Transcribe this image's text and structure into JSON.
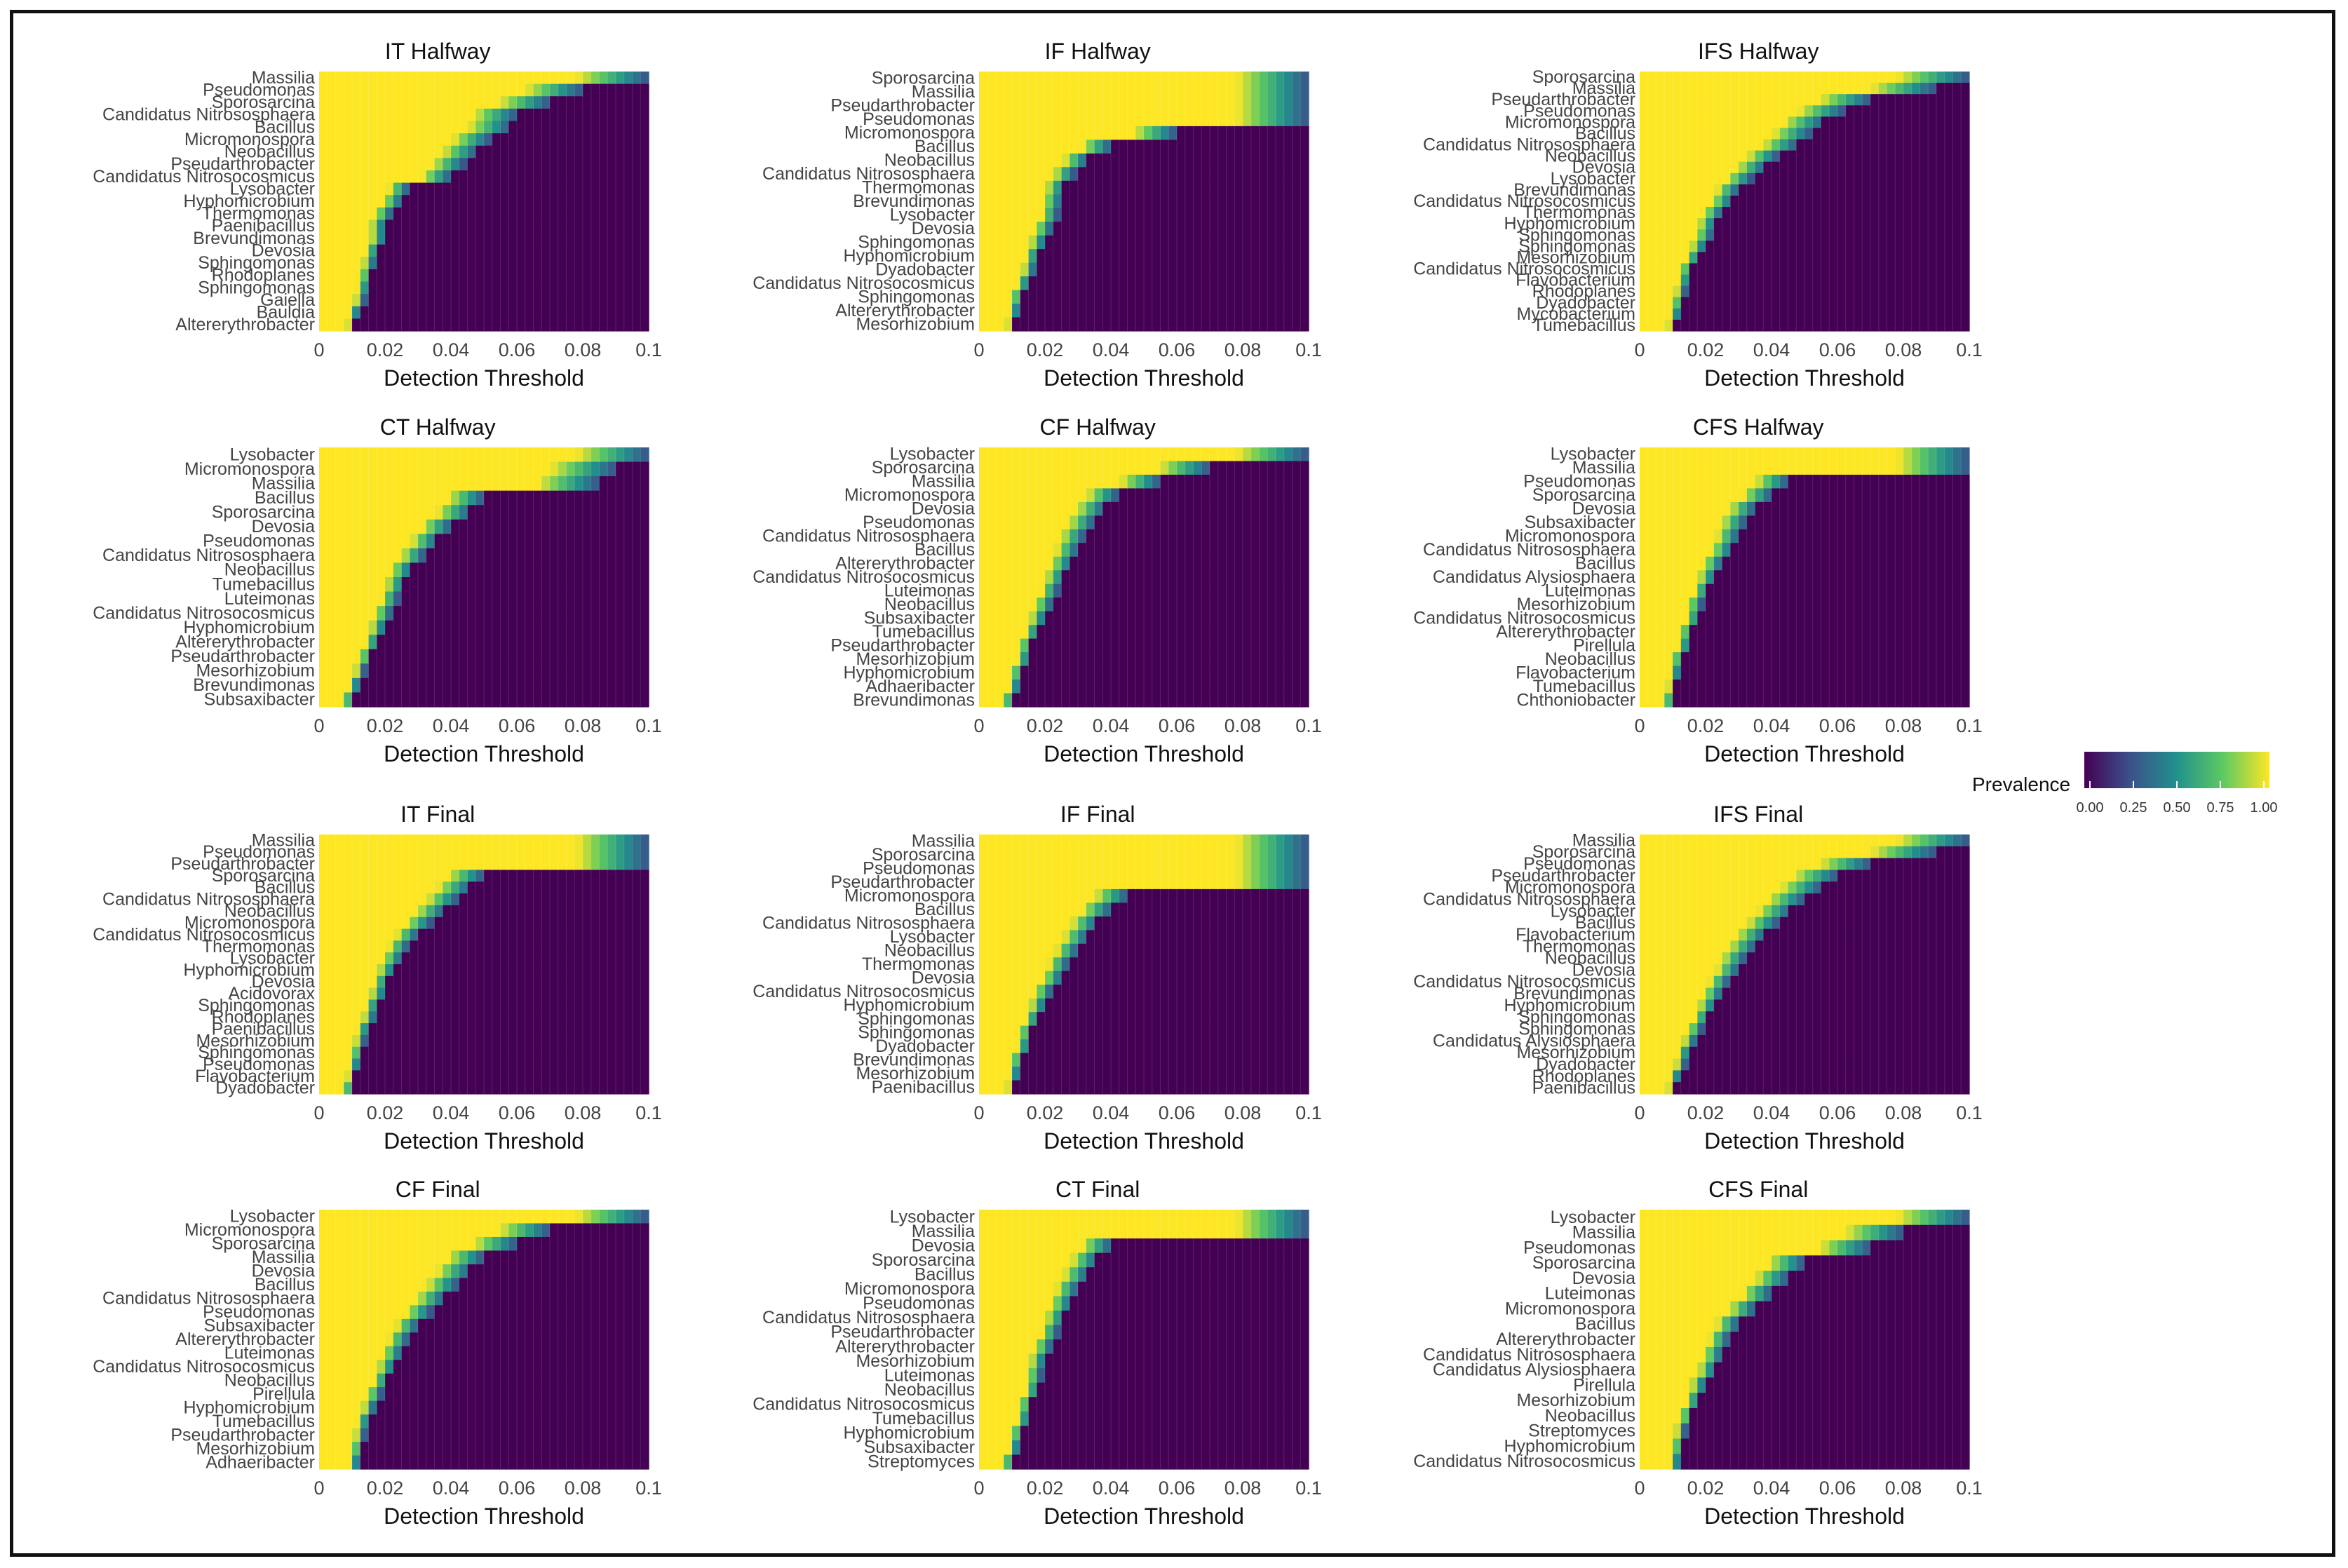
{
  "colors": {
    "viridis": [
      "#440154",
      "#3b528b",
      "#21918c",
      "#5ec962",
      "#fde725"
    ],
    "background": "#ffffff",
    "frame": "#111111"
  },
  "axis": {
    "xlabel": "Detection Threshold",
    "xticks": [
      "0",
      "0.02",
      "0.04",
      "0.06",
      "0.08",
      "0.1"
    ],
    "xlim": [
      0,
      0.1
    ]
  },
  "legend": {
    "title": "Prevalence",
    "ticks": [
      "0.00",
      "0.25",
      "0.50",
      "0.75",
      "1.00"
    ]
  },
  "chart_data": [
    {
      "type": "heatmap",
      "title": "IT Halfway",
      "xlabel": "Detection Threshold",
      "taxa": [
        "Massilia",
        "Pseudomonas",
        "Sporosarcina",
        "Candidatus Nitrososphaera",
        "Bacillus",
        "Micromonospora",
        "Neobacillus",
        "Pseudarthrobacter",
        "Candidatus Nitrosocosmicus",
        "Lysobacter",
        "Hyphomicrobium",
        "Thermomonas",
        "Paenibacillus",
        "Brevundimonas",
        "Devosia",
        "Sphingomonas",
        "Rhodoplanes",
        "Sphingomonas",
        "Gaiella",
        "Bauldia",
        "Altererythrobacter"
      ],
      "prevalence_edge": [
        0.1,
        0.08,
        0.07,
        0.06,
        0.058,
        0.052,
        0.048,
        0.044,
        0.04,
        0.027,
        0.025,
        0.022,
        0.02,
        0.02,
        0.018,
        0.017,
        0.016,
        0.015,
        0.014,
        0.012,
        0.011
      ]
    },
    {
      "type": "heatmap",
      "title": "IF Halfway",
      "xlabel": "Detection Threshold",
      "taxa": [
        "Sporosarcina",
        "Massilia",
        "Pseudarthrobacter",
        "Pseudomonas",
        "Micromonospora",
        "Bacillus",
        "Neobacillus",
        "Candidatus Nitrososphaera",
        "Thermomonas",
        "Brevundimonas",
        "Lysobacter",
        "Devosia",
        "Sphingomonas",
        "Hyphomicrobium",
        "Dyadobacter",
        "Candidatus Nitrosocosmicus",
        "Sphingomonas",
        "Altererythrobacter",
        "Mesorhizobium"
      ],
      "prevalence_edge": [
        0.1,
        0.1,
        0.1,
        0.1,
        0.06,
        0.04,
        0.033,
        0.029,
        0.026,
        0.025,
        0.024,
        0.022,
        0.02,
        0.018,
        0.017,
        0.015,
        0.013,
        0.012,
        0.011
      ]
    },
    {
      "type": "heatmap",
      "title": "IFS Halfway",
      "xlabel": "Detection Threshold",
      "taxa": [
        "Sporosarcina",
        "Massilia",
        "Pseudarthrobacter",
        "Pseudomonas",
        "Micromonospora",
        "Bacillus",
        "Candidatus Nitrososphaera",
        "Neobacillus",
        "Devosia",
        "Lysobacter",
        "Brevundimonas",
        "Candidatus Nitrosocosmicus",
        "Thermomonas",
        "Hyphomicrobium",
        "Sphingomonas",
        "Sphingomonas",
        "Mesorhizobium",
        "Candidatus Nitrosocosmicus",
        "Flavobacterium",
        "Rhodoplanes",
        "Dyadobacter",
        "Mycobacterium",
        "Tumebacillus"
      ],
      "prevalence_edge": [
        0.1,
        0.09,
        0.07,
        0.062,
        0.056,
        0.052,
        0.048,
        0.042,
        0.038,
        0.034,
        0.03,
        0.028,
        0.025,
        0.023,
        0.022,
        0.02,
        0.018,
        0.016,
        0.015,
        0.014,
        0.013,
        0.012,
        0.011
      ]
    },
    {
      "type": "heatmap",
      "title": "CT Halfway",
      "xlabel": "Detection Threshold",
      "taxa": [
        "Lysobacter",
        "Micromonospora",
        "Massilia",
        "Bacillus",
        "Sporosarcina",
        "Devosia",
        "Pseudomonas",
        "Candidatus Nitrososphaera",
        "Neobacillus",
        "Tumebacillus",
        "Luteimonas",
        "Candidatus Nitrosocosmicus",
        "Hyphomicrobium",
        "Altererythrobacter",
        "Pseudarthrobacter",
        "Mesorhizobium",
        "Brevundimonas",
        "Subsaxibacter"
      ],
      "prevalence_edge": [
        0.1,
        0.09,
        0.085,
        0.05,
        0.046,
        0.04,
        0.036,
        0.032,
        0.028,
        0.026,
        0.024,
        0.022,
        0.02,
        0.018,
        0.016,
        0.014,
        0.012,
        0.01
      ]
    },
    {
      "type": "heatmap",
      "title": "CF Halfway",
      "xlabel": "Detection Threshold",
      "taxa": [
        "Lysobacter",
        "Sporosarcina",
        "Massilia",
        "Micromonospora",
        "Devosia",
        "Pseudomonas",
        "Candidatus Nitrososphaera",
        "Bacillus",
        "Altererythrobacter",
        "Candidatus Nitrosocosmicus",
        "Luteimonas",
        "Neobacillus",
        "Subsaxibacter",
        "Tumebacillus",
        "Pseudarthrobacter",
        "Mesorhizobium",
        "Hyphomicrobium",
        "Adhaeribacter",
        "Brevundimonas"
      ],
      "prevalence_edge": [
        0.1,
        0.07,
        0.055,
        0.042,
        0.038,
        0.035,
        0.032,
        0.03,
        0.028,
        0.026,
        0.024,
        0.022,
        0.02,
        0.018,
        0.016,
        0.015,
        0.013,
        0.012,
        0.01
      ]
    },
    {
      "type": "heatmap",
      "title": "CFS Halfway",
      "xlabel": "Detection Threshold",
      "taxa": [
        "Lysobacter",
        "Massilia",
        "Pseudomonas",
        "Sporosarcina",
        "Devosia",
        "Subsaxibacter",
        "Micromonospora",
        "Candidatus Nitrososphaera",
        "Bacillus",
        "Candidatus Alysiosphaera",
        "Luteimonas",
        "Mesorhizobium",
        "Candidatus Nitrosocosmicus",
        "Altererythrobacter",
        "Pirellula",
        "Neobacillus",
        "Flavobacterium",
        "Tumebacillus",
        "Chthoniobacter"
      ],
      "prevalence_edge": [
        0.1,
        0.1,
        0.045,
        0.04,
        0.035,
        0.032,
        0.03,
        0.028,
        0.025,
        0.023,
        0.021,
        0.019,
        0.018,
        0.016,
        0.015,
        0.013,
        0.012,
        0.011,
        0.01
      ]
    },
    {
      "type": "heatmap",
      "title": "IT Final",
      "xlabel": "Detection Threshold",
      "taxa": [
        "Massilia",
        "Pseudomonas",
        "Pseudarthrobacter",
        "Sporosarcina",
        "Bacillus",
        "Candidatus Nitrososphaera",
        "Neobacillus",
        "Micromonospora",
        "Candidatus Nitrosocosmicus",
        "Thermomonas",
        "Lysobacter",
        "Hyphomicrobium",
        "Devosia",
        "Acidovorax",
        "Sphingomonas",
        "Rhodoplanes",
        "Paenibacillus",
        "Mesorhizobium",
        "Sphingomonas",
        "Pseudomonas",
        "Flavobacterium",
        "Dyadobacter"
      ],
      "prevalence_edge": [
        0.1,
        0.1,
        0.1,
        0.05,
        0.046,
        0.042,
        0.038,
        0.034,
        0.03,
        0.027,
        0.025,
        0.023,
        0.021,
        0.02,
        0.018,
        0.017,
        0.015,
        0.014,
        0.013,
        0.012,
        0.011,
        0.01
      ]
    },
    {
      "type": "heatmap",
      "title": "IF Final",
      "xlabel": "Detection Threshold",
      "taxa": [
        "Massilia",
        "Sporosarcina",
        "Pseudomonas",
        "Pseudarthrobacter",
        "Micromonospora",
        "Bacillus",
        "Candidatus Nitrososphaera",
        "Lysobacter",
        "Neobacillus",
        "Thermomonas",
        "Devosia",
        "Candidatus Nitrosocosmicus",
        "Hyphomicrobium",
        "Sphingomonas",
        "Sphingomonas",
        "Dyadobacter",
        "Brevundimonas",
        "Mesorhizobium",
        "Paenibacillus"
      ],
      "prevalence_edge": [
        0.1,
        0.1,
        0.1,
        0.1,
        0.045,
        0.04,
        0.036,
        0.033,
        0.03,
        0.027,
        0.025,
        0.022,
        0.02,
        0.018,
        0.016,
        0.015,
        0.013,
        0.012,
        0.011
      ]
    },
    {
      "type": "heatmap",
      "title": "IFS Final",
      "xlabel": "Detection Threshold",
      "taxa": [
        "Massilia",
        "Sporosarcina",
        "Pseudomonas",
        "Pseudarthrobacter",
        "Micromonospora",
        "Candidatus Nitrososphaera",
        "Lysobacter",
        "Bacillus",
        "Flavobacterium",
        "Thermomonas",
        "Neobacillus",
        "Devosia",
        "Candidatus Nitrosocosmicus",
        "Brevundimonas",
        "Hyphomicrobium",
        "Sphingomonas",
        "Sphingomonas",
        "Candidatus Alysiosphaera",
        "Mesorhizobium",
        "Dyadobacter",
        "Rhodoplanes",
        "Paenibacillus"
      ],
      "prevalence_edge": [
        0.1,
        0.09,
        0.07,
        0.06,
        0.055,
        0.05,
        0.046,
        0.042,
        0.038,
        0.035,
        0.032,
        0.03,
        0.027,
        0.025,
        0.023,
        0.021,
        0.019,
        0.017,
        0.015,
        0.014,
        0.012,
        0.011
      ]
    },
    {
      "type": "heatmap",
      "title": "CF Final",
      "xlabel": "Detection Threshold",
      "taxa": [
        "Lysobacter",
        "Micromonospora",
        "Sporosarcina",
        "Massilia",
        "Devosia",
        "Bacillus",
        "Candidatus Nitrososphaera",
        "Pseudomonas",
        "Subsaxibacter",
        "Altererythrobacter",
        "Luteimonas",
        "Candidatus Nitrosocosmicus",
        "Neobacillus",
        "Pirellula",
        "Hyphomicrobium",
        "Tumebacillus",
        "Pseudarthrobacter",
        "Mesorhizobium",
        "Adhaeribacter"
      ],
      "prevalence_edge": [
        0.1,
        0.07,
        0.06,
        0.05,
        0.046,
        0.042,
        0.038,
        0.034,
        0.03,
        0.027,
        0.025,
        0.023,
        0.021,
        0.019,
        0.017,
        0.015,
        0.014,
        0.013,
        0.012
      ]
    },
    {
      "type": "heatmap",
      "title": "CT Final",
      "xlabel": "Detection Threshold",
      "taxa": [
        "Lysobacter",
        "Massilia",
        "Devosia",
        "Sporosarcina",
        "Bacillus",
        "Micromonospora",
        "Pseudomonas",
        "Candidatus Nitrososphaera",
        "Pseudarthrobacter",
        "Altererythrobacter",
        "Mesorhizobium",
        "Luteimonas",
        "Neobacillus",
        "Candidatus Nitrosocosmicus",
        "Tumebacillus",
        "Hyphomicrobium",
        "Subsaxibacter",
        "Streptomyces"
      ],
      "prevalence_edge": [
        0.1,
        0.1,
        0.04,
        0.036,
        0.033,
        0.03,
        0.028,
        0.026,
        0.024,
        0.022,
        0.02,
        0.019,
        0.018,
        0.016,
        0.015,
        0.013,
        0.012,
        0.01
      ]
    },
    {
      "type": "heatmap",
      "title": "CFS Final",
      "xlabel": "Detection Threshold",
      "taxa": [
        "Lysobacter",
        "Massilia",
        "Pseudomonas",
        "Sporosarcina",
        "Devosia",
        "Luteimonas",
        "Micromonospora",
        "Bacillus",
        "Altererythrobacter",
        "Candidatus Nitrososphaera",
        "Candidatus Alysiosphaera",
        "Pirellula",
        "Mesorhizobium",
        "Neobacillus",
        "Streptomyces",
        "Hyphomicrobium",
        "Candidatus Nitrosocosmicus"
      ],
      "prevalence_edge": [
        0.1,
        0.08,
        0.07,
        0.05,
        0.045,
        0.04,
        0.035,
        0.03,
        0.027,
        0.025,
        0.023,
        0.02,
        0.018,
        0.016,
        0.014,
        0.013,
        0.012
      ]
    }
  ]
}
